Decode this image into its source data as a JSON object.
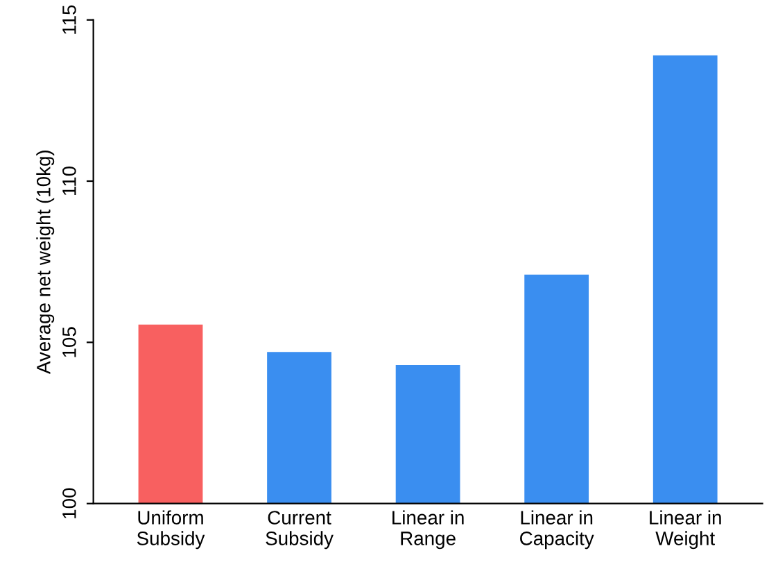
{
  "chart_data": {
    "type": "bar",
    "ylabel": "Average net weight (10kg)",
    "categories": [
      "Uniform\nSubsidy",
      "Current\nSubsidy",
      "Linear in\nRange",
      "Linear in\nCapacity",
      "Linear in\nWeight"
    ],
    "values": [
      105.55,
      104.7,
      104.3,
      107.1,
      113.9
    ],
    "colors": [
      "#f86060",
      "#3a8ef0",
      "#3a8ef0",
      "#3a8ef0",
      "#3a8ef0"
    ],
    "ylim": [
      100,
      115
    ],
    "yticks": [
      100,
      105,
      110,
      115
    ],
    "grid": false
  }
}
